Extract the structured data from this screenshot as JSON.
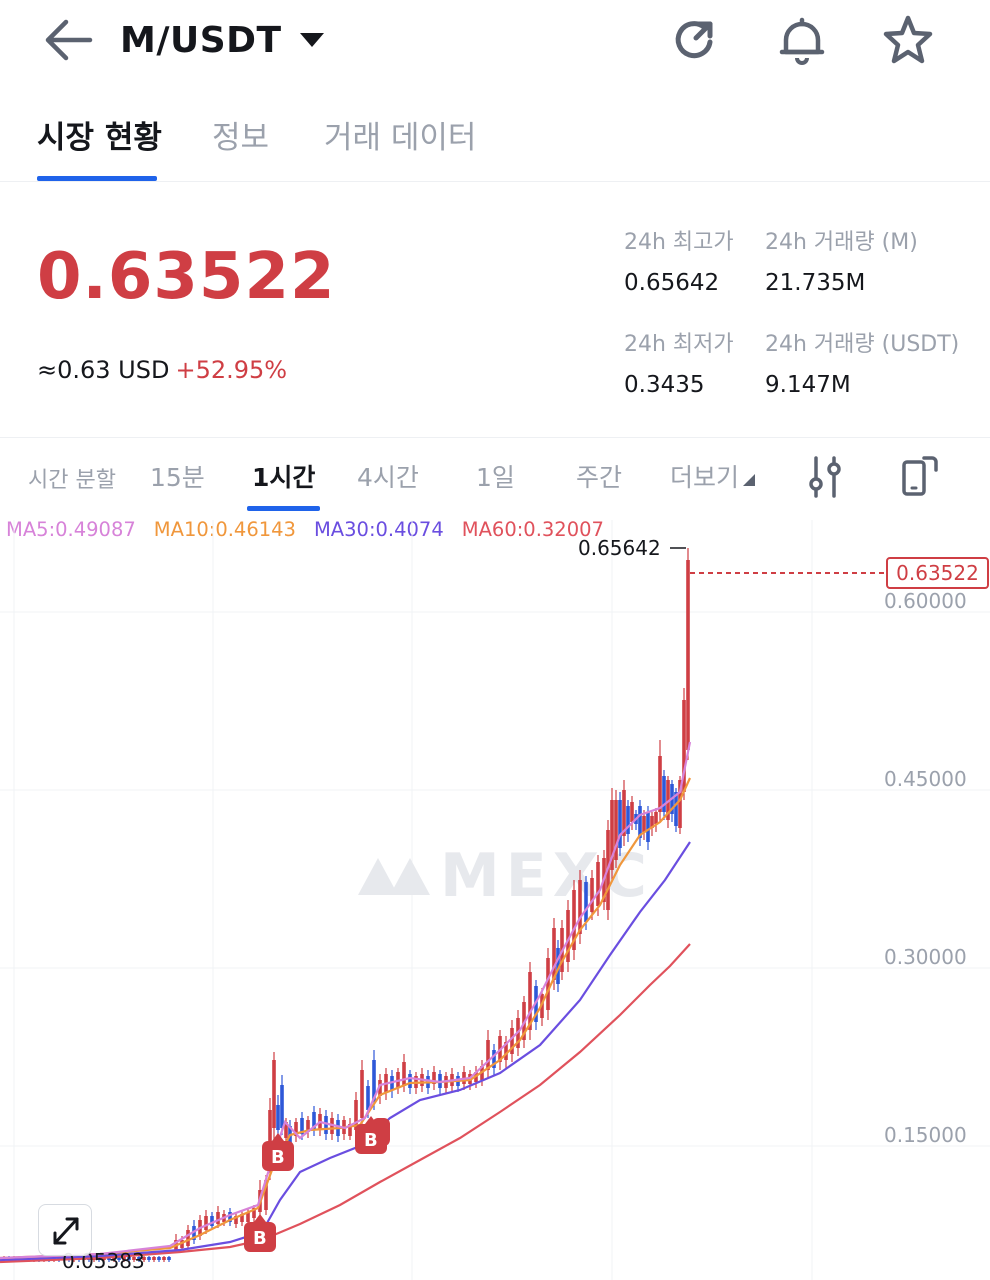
{
  "header": {
    "pair": "M/USDT",
    "icons": [
      "back-arrow-icon",
      "refresh-icon",
      "bell-icon",
      "star-icon"
    ]
  },
  "tabs": [
    {
      "label": "시장 현황",
      "active": true
    },
    {
      "label": "정보",
      "active": false
    },
    {
      "label": "거래 데이터",
      "active": false
    }
  ],
  "price": {
    "last": "0.63522",
    "usd": "≈0.63  USD",
    "change": "+52.95%",
    "color_up": "#cf3e44"
  },
  "stats": {
    "high_label": "24h 최고가",
    "high_value": "0.65642",
    "vol_m_label": "24h 거래량 (M)",
    "vol_m_value": "21.735M",
    "low_label": "24h 최저가",
    "low_value": "0.3435",
    "vol_usdt_label": "24h 거래량 (USDT)",
    "vol_usdt_value": "9.147M"
  },
  "intervals": [
    {
      "label": "시간 분할",
      "active": false
    },
    {
      "label": "15분",
      "active": false
    },
    {
      "label": "1시간",
      "active": true
    },
    {
      "label": "4시간",
      "active": false
    },
    {
      "label": "1일",
      "active": false
    },
    {
      "label": "주간",
      "active": false
    },
    {
      "label": "더보기",
      "active": false
    }
  ],
  "toolbar_icons": [
    "indicator-settings-icon",
    "rotate-screen-icon"
  ],
  "ma": {
    "ma5": {
      "label": "MA5:0.49087",
      "color": "#d783d9"
    },
    "ma10": {
      "label": "MA10:0.46143",
      "color": "#f0973c"
    },
    "ma30": {
      "label": "MA30:0.4074",
      "color": "#6a4ee0"
    },
    "ma60": {
      "label": "MA60:0.32007",
      "color": "#e0525c"
    }
  },
  "chart": {
    "y_ticks": [
      "0.60000",
      "0.45000",
      "0.30000",
      "0.15000"
    ],
    "high_marker": "0.65642",
    "low_marker": "0.05383",
    "current_tag": "0.63522",
    "watermark": "MEXC",
    "buy_marker_label": "B"
  },
  "chart_data": {
    "type": "candlestick",
    "y_axis_ticks": [
      0.6,
      0.45,
      0.3,
      0.15
    ],
    "current_price": 0.63522,
    "high": 0.65642,
    "low": 0.05383,
    "series": [
      {
        "name": "MA5",
        "last": 0.49087
      },
      {
        "name": "MA10",
        "last": 0.46143
      },
      {
        "name": "MA30",
        "last": 0.4074
      },
      {
        "name": "MA60",
        "last": 0.32007
      }
    ],
    "colors": {
      "up": "#cf3e44",
      "down": "#2e58d8"
    }
  }
}
